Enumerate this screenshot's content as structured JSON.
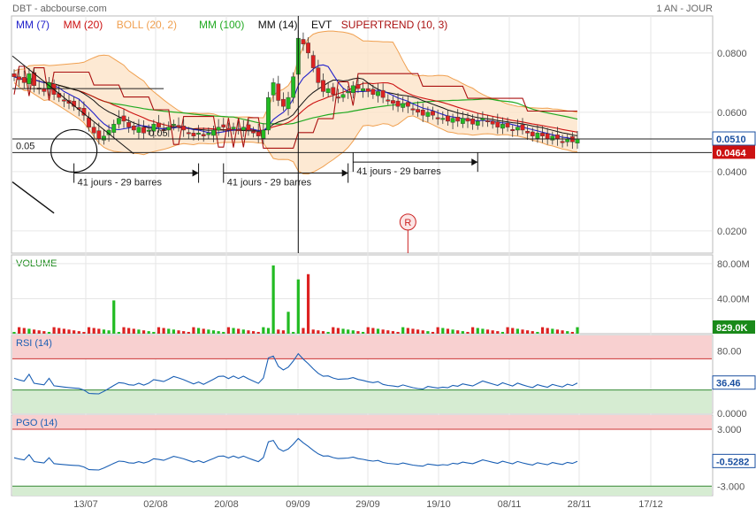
{
  "header": {
    "source": "DBT - abcbourse.com",
    "period": "1 AN - JOUR"
  },
  "colors": {
    "mm7": "#2222cc",
    "mm20": "#cc1111",
    "boll": "#f0a050",
    "boll_fill": "#fde3c8",
    "mm100": "#22aa22",
    "mm14": "#111111",
    "supertrend": "#aa1111",
    "up": "#22bb22",
    "down": "#dd2222",
    "rsi_line": "#1a5fb4",
    "overbought": "#f8d0d0",
    "oversold": "#d6ecd2",
    "grid": "#e6e6e6",
    "price_box": "#1a4fa0",
    "support_box": "#cc1111",
    "volume_box": "#1a8a1a"
  },
  "chart_data": [
    {
      "type": "candlestick",
      "panel": "price",
      "legend": [
        {
          "label": "MM (7)",
          "color": "#2222cc"
        },
        {
          "label": "MM (20)",
          "color": "#cc1111"
        },
        {
          "label": "BOLL (20, 2)",
          "color": "#f0a050"
        },
        {
          "label": "MM (100)",
          "color": "#22aa22"
        },
        {
          "label": "MM (14)",
          "color": "#111111"
        },
        {
          "label": "EVT",
          "color": "#111111"
        },
        {
          "label": "SUPERTREND (10, 3)",
          "color": "#aa1111"
        }
      ],
      "y_ticks": [
        "0.0800",
        "0.0600",
        "0.0400",
        "0.0200"
      ],
      "y_tick_values": [
        0.08,
        0.06,
        0.04,
        0.02
      ],
      "ylim": [
        0.0125,
        0.0925
      ],
      "last_price": "0.0510",
      "support_level": "0.0464",
      "annotations": {
        "level_label": "0.05",
        "inline_label": "0.05",
        "cycle_label": "41 jours - 29 barres",
        "event_marker": "R"
      },
      "x_ticks": [
        "13/07",
        "02/08",
        "20/08",
        "09/09",
        "29/09",
        "19/10",
        "08/11",
        "28/11",
        "17/12"
      ],
      "closes": [
        0.072,
        0.071,
        0.07,
        0.073,
        0.069,
        0.068,
        0.067,
        0.07,
        0.066,
        0.065,
        0.064,
        0.063,
        0.062,
        0.061,
        0.059,
        0.055,
        0.053,
        0.051,
        0.052,
        0.054,
        0.056,
        0.058,
        0.057,
        0.055,
        0.054,
        0.055,
        0.053,
        0.054,
        0.056,
        0.055,
        0.054,
        0.055,
        0.056,
        0.055,
        0.054,
        0.053,
        0.052,
        0.053,
        0.052,
        0.053,
        0.054,
        0.055,
        0.055,
        0.054,
        0.055,
        0.054,
        0.055,
        0.054,
        0.053,
        0.052,
        0.054,
        0.065,
        0.07,
        0.064,
        0.062,
        0.065,
        0.072,
        0.085,
        0.083,
        0.08,
        0.075,
        0.07,
        0.067,
        0.068,
        0.066,
        0.065,
        0.066,
        0.067,
        0.069,
        0.068,
        0.068,
        0.067,
        0.066,
        0.067,
        0.065,
        0.064,
        0.063,
        0.062,
        0.063,
        0.062,
        0.061,
        0.06,
        0.059,
        0.06,
        0.059,
        0.058,
        0.058,
        0.057,
        0.058,
        0.057,
        0.058,
        0.057,
        0.056,
        0.057,
        0.058,
        0.057,
        0.056,
        0.055,
        0.056,
        0.055,
        0.054,
        0.055,
        0.054,
        0.053,
        0.052,
        0.053,
        0.052,
        0.051,
        0.052,
        0.051,
        0.05,
        0.051,
        0.05,
        0.051
      ]
    },
    {
      "type": "bar",
      "panel": "volume",
      "title": "VOLUME",
      "y_ticks": [
        "80.00M",
        "40.00M"
      ],
      "y_tick_values": [
        80,
        40
      ],
      "ylim": [
        0,
        90
      ],
      "last_value": "829.0K",
      "spikes": [
        {
          "index": 20,
          "value": 38
        },
        {
          "index": 52,
          "value": 78
        },
        {
          "index": 55,
          "value": 25
        },
        {
          "index": 57,
          "value": 62
        },
        {
          "index": 59,
          "value": 68
        }
      ]
    },
    {
      "type": "line",
      "panel": "rsi",
      "title": "RSI (14)",
      "y_ticks": [
        "80.00",
        "0.0000"
      ],
      "y_tick_values": [
        80,
        0
      ],
      "ylim": [
        0,
        100
      ],
      "overbought": 70,
      "oversold": 30,
      "last_value": "36.46"
    },
    {
      "type": "line",
      "panel": "pgo",
      "title": "PGO (14)",
      "y_ticks": [
        "3.000",
        "-3.000"
      ],
      "y_tick_values": [
        3,
        -3
      ],
      "ylim": [
        -4,
        4.5
      ],
      "overbought": 3,
      "oversold": -3,
      "last_value": "-0.5282"
    }
  ]
}
